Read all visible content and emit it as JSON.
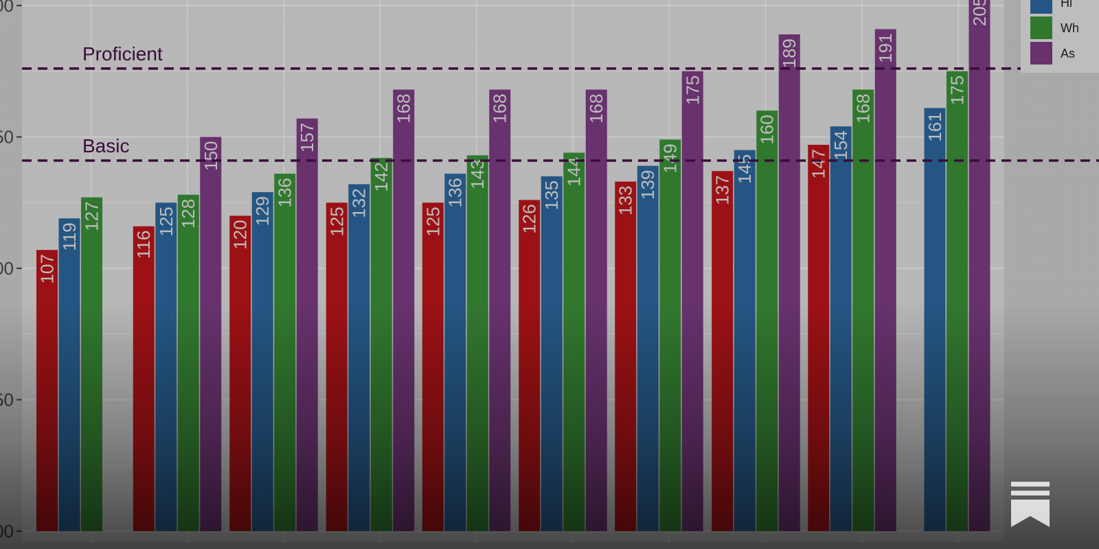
{
  "chart_data": {
    "type": "bar",
    "categories": [
      "",
      "",
      "",
      "",
      "",
      "",
      "",
      "",
      "",
      ""
    ],
    "series": [
      {
        "name": "",
        "color": "#c8161b",
        "values": [
          107,
          116,
          120,
          125,
          125,
          126,
          133,
          137,
          147,
          null
        ]
      },
      {
        "name": "Hi",
        "color": "#2f6ea8",
        "values": [
          119,
          125,
          129,
          132,
          136,
          135,
          139,
          145,
          154,
          161
        ]
      },
      {
        "name": "Wh",
        "color": "#3f9a3c",
        "values": [
          127,
          128,
          136,
          142,
          143,
          144,
          149,
          160,
          168,
          175
        ]
      },
      {
        "name": "As",
        "color": "#84408c",
        "values": [
          null,
          150,
          157,
          168,
          168,
          168,
          175,
          189,
          191,
          205
        ]
      }
    ],
    "y_tick_labels": [
      "00",
      "50",
      "00",
      "50",
      "00"
    ],
    "ylim": [
      0,
      200
    ],
    "reference_lines": [
      {
        "label": "Proficient",
        "value": 176,
        "color": "#4a0f4a",
        "style": "dashed"
      },
      {
        "label": "Basic",
        "value": 141,
        "color": "#4a0f4a",
        "style": "dashed"
      }
    ],
    "grid": true,
    "legend_position": "top-right",
    "panel_background": "#ebebeb",
    "gridline_color": "#ffffff"
  },
  "overlay": {
    "icon": "bookmark-icon"
  }
}
